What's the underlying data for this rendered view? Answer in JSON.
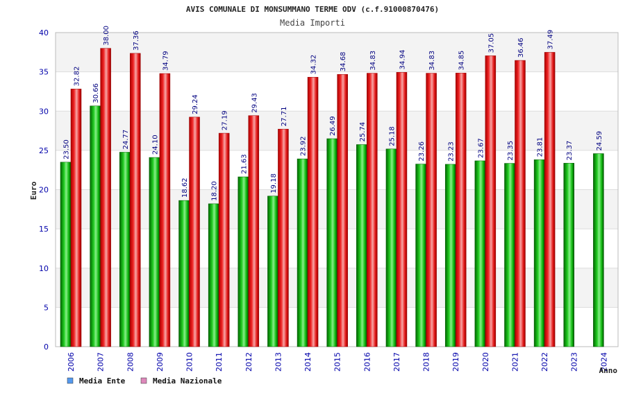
{
  "chart_data": {
    "type": "bar",
    "title": "AVIS COMUNALE DI MONSUMMANO TERME ODV (c.f.91000870476)",
    "subtitle": "Media Importi",
    "xlabel": "Anno",
    "ylabel": "Euro",
    "ylim": [
      0,
      40
    ],
    "ytick_step": 5,
    "categories": [
      "2006",
      "2007",
      "2008",
      "2009",
      "2010",
      "2011",
      "2012",
      "2013",
      "2014",
      "2015",
      "2016",
      "2017",
      "2018",
      "2019",
      "2020",
      "2021",
      "2022",
      "2023",
      "2024"
    ],
    "series": [
      {
        "name": "Media Ente",
        "color": "#00aa00",
        "legend_color": "#5599ee",
        "values": [
          23.5,
          30.66,
          24.77,
          24.1,
          18.62,
          18.2,
          21.63,
          19.18,
          23.92,
          26.49,
          25.74,
          25.18,
          23.26,
          23.23,
          23.67,
          23.35,
          23.81,
          23.37,
          24.59
        ],
        "labels": [
          "23.50",
          "30.66",
          "24.77",
          "24.10",
          "18.62",
          "18.20",
          "21.63",
          "19.18",
          "23.92",
          "26.49",
          "25.74",
          "25.18",
          "23.26",
          "23.23",
          "23.67",
          "23.35",
          "23.81",
          "23.37",
          "24.59"
        ]
      },
      {
        "name": "Media Nazionale",
        "color": "#ee2222",
        "legend_color": "#dd88bb",
        "values": [
          32.82,
          38.0,
          37.36,
          34.79,
          29.24,
          27.19,
          29.43,
          27.71,
          34.32,
          34.68,
          34.83,
          34.94,
          34.83,
          34.85,
          37.05,
          36.46,
          37.49,
          null,
          null
        ],
        "labels": [
          "32.82",
          "38.00",
          "37.36",
          "34.79",
          "29.24",
          "27.19",
          "29.43",
          "27.71",
          "34.32",
          "34.68",
          "34.83",
          "34.94",
          "34.83",
          "34.85",
          "37.05",
          "36.46",
          "37.49",
          "",
          ""
        ]
      }
    ],
    "legend": {
      "position": "bottom-left"
    }
  }
}
